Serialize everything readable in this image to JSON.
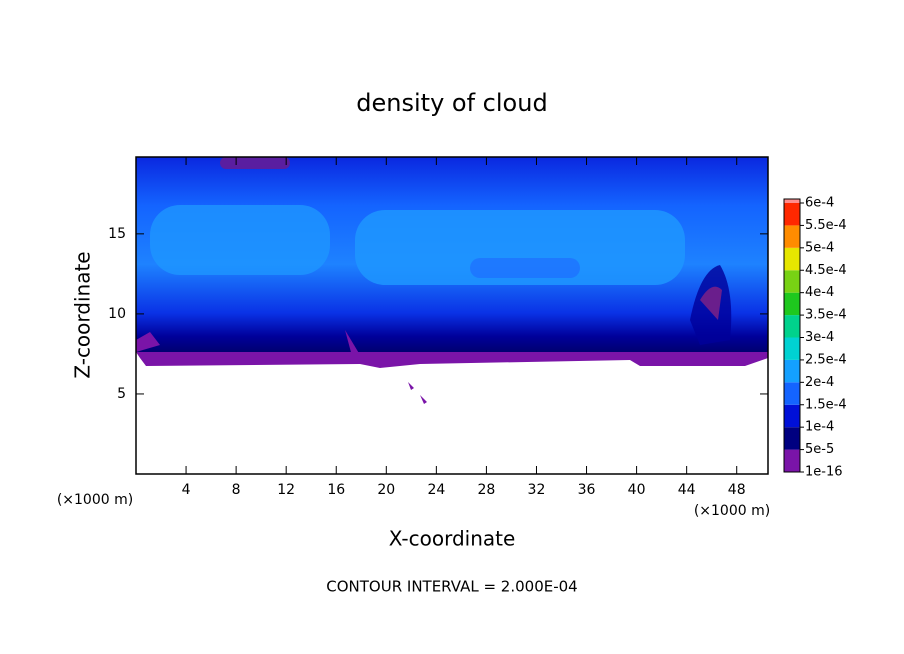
{
  "chart_data": {
    "type": "contour",
    "title": "density of cloud",
    "x_label": "X-coordinate",
    "y_label": "Z-coordinate",
    "axis_unit": "(×1000 m)",
    "footer": "CONTOUR INTERVAL = 2.000E-04",
    "xlim": [
      0,
      50.5
    ],
    "ylim": [
      0,
      19.8
    ],
    "xticks": [
      4,
      8,
      12,
      16,
      20,
      24,
      28,
      32,
      36,
      40,
      44,
      48
    ],
    "yticks": [
      5,
      10,
      15
    ],
    "levels": [
      {
        "value": 1e-16,
        "label": "1e-16"
      },
      {
        "value": 5e-05,
        "label": "5e-5"
      },
      {
        "value": 0.0001,
        "label": "1e-4"
      },
      {
        "value": 0.00015,
        "label": "1.5e-4"
      },
      {
        "value": 0.0002,
        "label": "2e-4"
      },
      {
        "value": 0.00025,
        "label": "2.5e-4"
      },
      {
        "value": 0.0003,
        "label": "3e-4"
      },
      {
        "value": 0.00035,
        "label": "3.5e-4"
      },
      {
        "value": 0.0004,
        "label": "4e-4"
      },
      {
        "value": 0.00045,
        "label": "4.5e-4"
      },
      {
        "value": 0.0005,
        "label": "5e-4"
      },
      {
        "value": 0.00055,
        "label": "5.5e-4"
      },
      {
        "value": 0.0006,
        "label": "6e-4"
      }
    ],
    "colors": [
      "#7a14a8",
      "#000080",
      "#0010d8",
      "#1464ff",
      "#14a0ff",
      "#00d2d2",
      "#00d28c",
      "#1ec81e",
      "#78d214",
      "#e6e600",
      "#ff8c00",
      "#ff2800",
      "#ff8c8c"
    ]
  }
}
